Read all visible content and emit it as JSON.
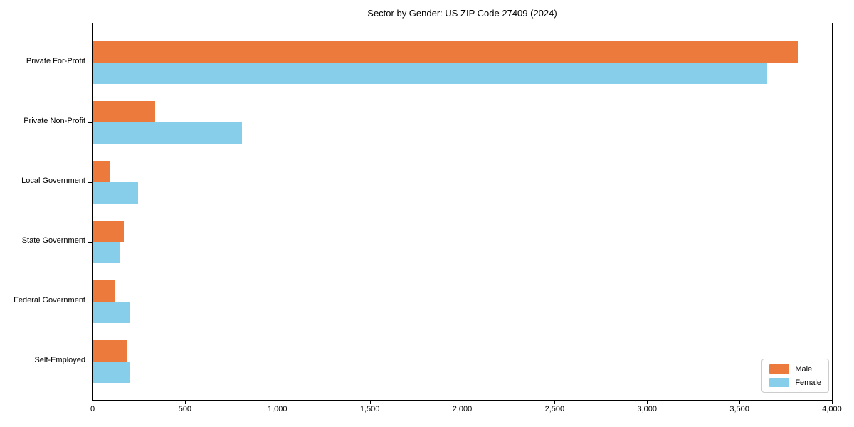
{
  "chart_data": {
    "type": "bar",
    "orientation": "horizontal",
    "title": "Sector by Gender: US ZIP Code 27409 (2024)",
    "categories": [
      "Private For-Profit",
      "Private Non-Profit",
      "Local Government",
      "State Government",
      "Federal Government",
      "Self-Employed"
    ],
    "series": [
      {
        "name": "Male",
        "color": "#EC7A3C",
        "values": [
          3820,
          340,
          95,
          170,
          120,
          185
        ]
      },
      {
        "name": "Female",
        "color": "#87CEEB",
        "values": [
          3650,
          810,
          245,
          145,
          200,
          200
        ]
      }
    ],
    "xlim": [
      0,
      4000
    ],
    "xticks": [
      0,
      500,
      1000,
      1500,
      2000,
      2500,
      3000,
      3500,
      4000
    ],
    "xtick_labels": [
      "0",
      "500",
      "1,000",
      "1,500",
      "2,000",
      "2,500",
      "3,000",
      "3,500",
      "4,000"
    ],
    "ylabel": "",
    "xlabel": "",
    "grid": false,
    "legend": {
      "position": "lower right",
      "items": [
        "Male",
        "Female"
      ]
    },
    "axis_color": "#000000",
    "background_color": "#ffffff"
  }
}
